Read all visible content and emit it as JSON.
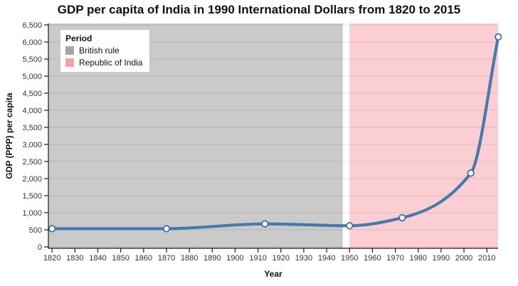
{
  "title": "GDP per capita of India in 1990 International Dollars from 1820 to 2015",
  "chart_data": {
    "type": "line",
    "title": "GDP per capita of India in 1990 International Dollars from 1820 to 2015",
    "xlabel": "Year",
    "ylabel": "GDP (PPP) per capita",
    "x": [
      1820,
      1870,
      1913,
      1950,
      1973,
      2003,
      2015
    ],
    "values": [
      533,
      533,
      673,
      619,
      853,
      2160,
      6150
    ],
    "xlim": [
      1818.4,
      2014.9
    ],
    "ylim": [
      0,
      6500
    ],
    "x_ticks": [
      1820,
      1830,
      1840,
      1850,
      1860,
      1870,
      1880,
      1890,
      1900,
      1910,
      1920,
      1930,
      1940,
      1950,
      1960,
      1970,
      1980,
      1990,
      2000,
      2010
    ],
    "y_ticks": [
      0,
      500,
      1000,
      1500,
      2000,
      2500,
      3000,
      3500,
      4000,
      4500,
      5000,
      5500,
      6000,
      6500
    ],
    "grid": "horizontal",
    "legend": {
      "title": "Period",
      "position": "top-left",
      "items": [
        {
          "label": "British rule",
          "color": "#a6a6a6"
        },
        {
          "label": "Republic of India",
          "color": "#f2a4aa"
        }
      ]
    },
    "regions": [
      {
        "label": "British rule",
        "from": 1818.4,
        "to": 1947,
        "color": "#cacaca"
      },
      {
        "label": "Republic of India",
        "from": 1950,
        "to": 2014.9,
        "color": "#fbced3"
      }
    ],
    "colors": {
      "line": "#467aad",
      "point_fill": "#f1f5fa",
      "point_stroke": "#3e6f9f",
      "grid": "rgba(0,0,0,0.085)",
      "axis": "#1a1a1a",
      "tick_label": "#333333"
    }
  }
}
